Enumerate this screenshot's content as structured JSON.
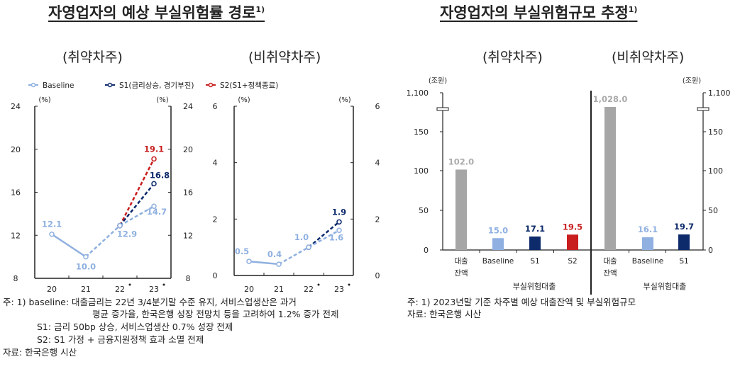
{
  "left": {
    "title": "자영업자의 예상 부실위험률 경로",
    "title_sup": "1)",
    "sub_left": "(취약차주)",
    "sub_right": "(비취약차주)",
    "notes": [
      "주: 1) baseline: 대출금리는 22년 3/4분기말 수준 유지, 서비스업생산은 과거",
      "평균 증가율, 한국은행 성장 전망치 등을 고려하여 1.2% 증가 전제",
      "S1: 금리 50bp 상승, 서비스업생산 0.7% 성장 전제",
      "S2: S1 가정 + 금융지원정책 효과 소멸 전제",
      "자료: 한국은행 시산"
    ]
  },
  "right": {
    "title": "자영업자의 부실위험규모 추정",
    "title_sup": "1)",
    "sub_left": "(취약차주)",
    "sub_right": "(비취약차주)",
    "notes": [
      "주: 1) 2023년말 기준 차주별 예상 대출잔액 및 부실위험규모",
      "자료: 한국은행 시산"
    ]
  },
  "colors": {
    "baseline": "#8fb0e0",
    "s1": "#0d2a6b",
    "s2": "#c81e1e",
    "loan": "#a6a6a6"
  },
  "legend": [
    "Baseline",
    "S1(금리상승, 경기부진)",
    "S2(S1+정책종료)"
  ],
  "chart_data": [
    {
      "type": "line",
      "subtitle": "(취약차주)",
      "unit_left": "(%)",
      "unit_right": "(%)",
      "categories": [
        "20",
        "21",
        "22*",
        "23*"
      ],
      "ylim": [
        8,
        24
      ],
      "yticks": [
        8,
        12,
        16,
        20,
        24
      ],
      "series": [
        {
          "name": "Baseline",
          "values": [
            12.1,
            10.0,
            12.9,
            14.7
          ]
        },
        {
          "name": "S1(금리상승, 경기부진)",
          "values": [
            null,
            null,
            12.9,
            16.8
          ]
        },
        {
          "name": "S2(S1+정책종료)",
          "values": [
            null,
            null,
            12.9,
            19.1
          ]
        }
      ],
      "labels": {
        "Baseline": [
          "12.1",
          "10.0",
          "12.9",
          "14.7"
        ],
        "S1": "16.8",
        "S2": "19.1"
      }
    },
    {
      "type": "line",
      "subtitle": "(비취약차주)",
      "unit_left": "(%)",
      "unit_right": "(%)",
      "categories": [
        "20",
        "21",
        "22*",
        "23*"
      ],
      "ylim": [
        0,
        6
      ],
      "yticks": [
        0,
        2,
        4,
        6
      ],
      "series": [
        {
          "name": "Baseline",
          "values": [
            0.5,
            0.4,
            1.0,
            1.6
          ]
        },
        {
          "name": "S1(금리상승, 경기부진)",
          "values": [
            null,
            null,
            1.0,
            1.9
          ]
        }
      ],
      "labels": {
        "Baseline": [
          "0.5",
          "0.4",
          "1.0",
          "1.6"
        ],
        "S1": "1.9"
      }
    },
    {
      "type": "bar",
      "unit_left": "(조원)",
      "unit_right": "(조원)",
      "yticks": [
        "0",
        "50",
        "100",
        "150",
        "1,100"
      ],
      "axis_break": true,
      "groups": [
        {
          "subtitle": "(취약차주)",
          "categories": [
            "대출\n잔액",
            "Baseline",
            "S1",
            "S2"
          ],
          "values": [
            102.0,
            15.0,
            17.1,
            19.5
          ],
          "labels": [
            "102.0",
            "15.0",
            "17.1",
            "19.5"
          ],
          "group_label": "부실위험대출"
        },
        {
          "subtitle": "(비취약차주)",
          "categories": [
            "대출\n잔액",
            "Baseline",
            "S1"
          ],
          "values": [
            1028.0,
            16.1,
            19.7
          ],
          "labels": [
            "1,028.0",
            "16.1",
            "19.7"
          ],
          "group_label": "부실위험대출"
        }
      ]
    }
  ]
}
